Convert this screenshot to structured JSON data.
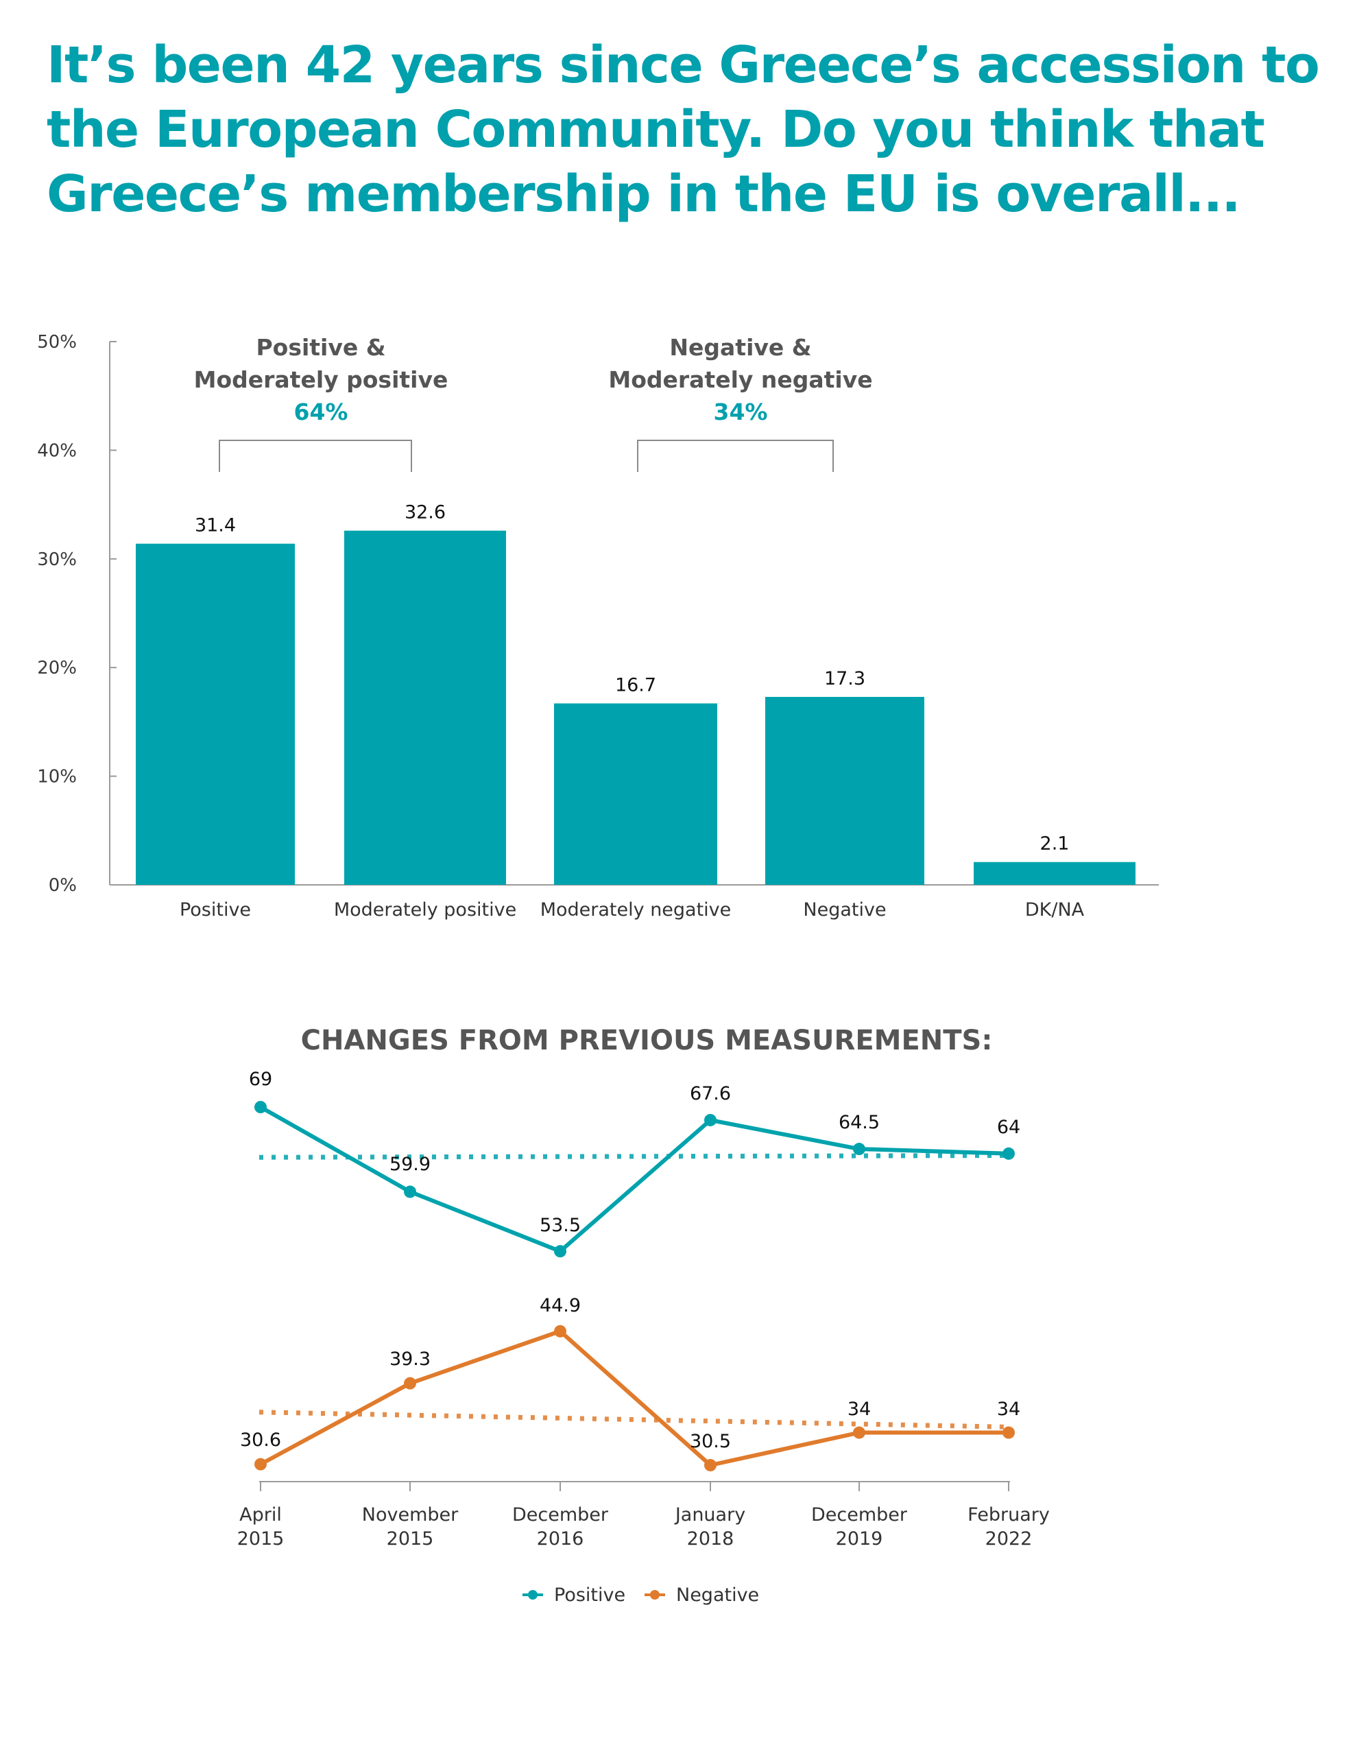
{
  "title": "It’s been 42 years since Greece’s accession to the European Community. Do you think that Greece’s membership in the EU is overall...",
  "colors": {
    "teal": "#00a3ad",
    "orange": "#e07b2c",
    "title": "#00a0ad"
  },
  "chart_data": [
    {
      "type": "bar",
      "categories": [
        "Positive",
        "Moderately positive",
        "Moderately negative",
        "Negative",
        "DK/NA"
      ],
      "values": [
        31.4,
        32.6,
        16.7,
        17.3,
        2.1
      ],
      "value_labels": [
        "31.4",
        "32.6",
        "16.7",
        "17.3",
        "2.1"
      ],
      "ylim": [
        0,
        50
      ],
      "yticks": [
        "0%",
        "10%",
        "20%",
        "30%",
        "40%",
        "50%"
      ],
      "groups": [
        {
          "line1": "Positive &",
          "line2": "Moderately positive",
          "total": "64%"
        },
        {
          "line1": "Negative &",
          "line2": "Moderately negative",
          "total": "34%"
        }
      ],
      "color": "#00a3ad"
    },
    {
      "type": "line",
      "title": "CHANGES FROM PREVIOUS MEASUREMENTS:",
      "x": [
        [
          "April",
          "2015"
        ],
        [
          "November",
          "2015"
        ],
        [
          "December",
          "2016"
        ],
        [
          "January",
          "2018"
        ],
        [
          "December",
          "2019"
        ],
        [
          "February",
          "2022"
        ]
      ],
      "series": [
        {
          "name": "Positive",
          "color": "#00a3ad",
          "values": [
            69,
            59.9,
            53.5,
            67.6,
            64.5,
            64
          ],
          "labels": [
            "69",
            "59.9",
            "53.5",
            "67.6",
            "64.5",
            "64"
          ],
          "trend": [
            63.6,
            63.8
          ]
        },
        {
          "name": "Negative",
          "color": "#e07b2c",
          "values": [
            30.6,
            39.3,
            44.9,
            30.5,
            34,
            34
          ],
          "labels": [
            "30.6",
            "39.3",
            "44.9",
            "30.5",
            "34",
            "34"
          ],
          "trend": [
            36.2,
            34.6
          ]
        }
      ],
      "legend": [
        "Positive",
        "Negative"
      ]
    }
  ]
}
